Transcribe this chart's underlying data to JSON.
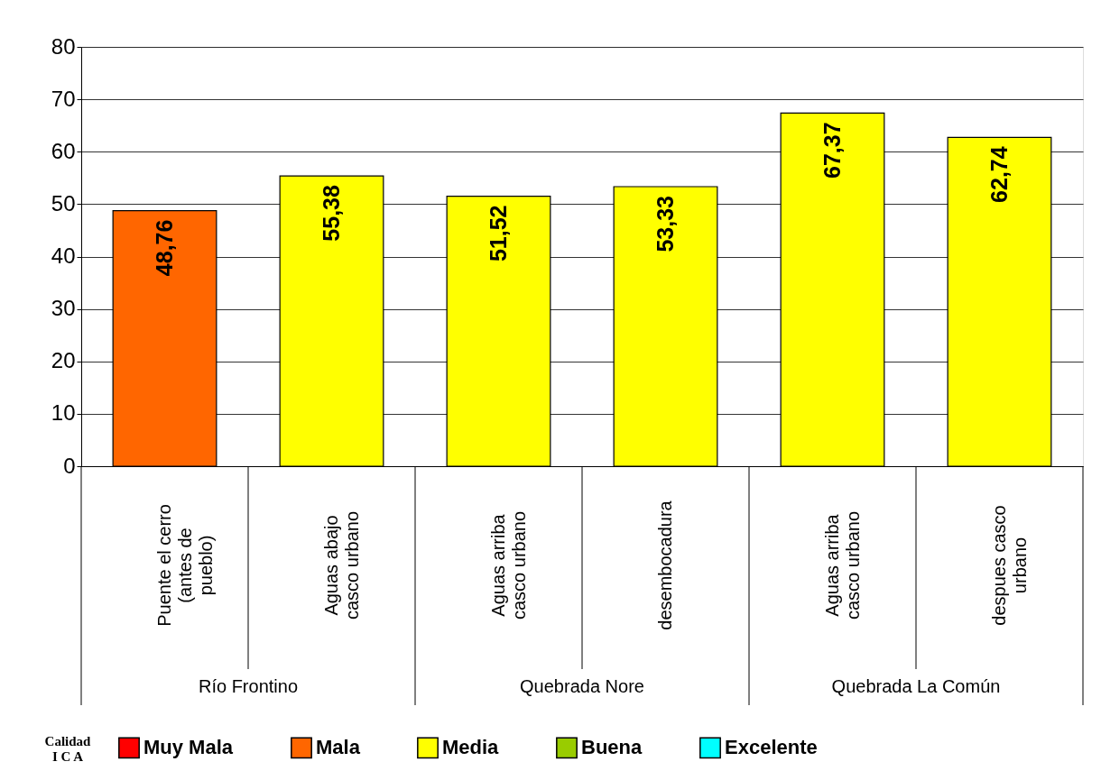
{
  "chart_data": {
    "type": "bar",
    "stacked": true,
    "categories": [
      "Puente el cerro (antes de pueblo)",
      "Aguas abajo casco urbano",
      "Aguas arriba casco urbano",
      "desembocadura",
      "Aguas arriba casco urbano",
      "despues casco urbano"
    ],
    "series": [
      {
        "name": "Muy Mala",
        "color": "#ff0000",
        "values": [
          null,
          null,
          null,
          null,
          null,
          null
        ]
      },
      {
        "name": "Mala",
        "color": "#ff6600",
        "values": [
          48.76,
          null,
          null,
          null,
          null,
          null
        ],
        "value_labels": [
          "48,76",
          null,
          null,
          null,
          null,
          null
        ]
      },
      {
        "name": "Media",
        "color": "#ffff00",
        "values": [
          null,
          55.38,
          51.52,
          53.33,
          67.37,
          62.74
        ],
        "value_labels": [
          null,
          "55,38",
          "51,52",
          "53,33",
          "67,37",
          "62,74"
        ]
      },
      {
        "name": "Buena",
        "color": "#99cc00",
        "values": [
          null,
          null,
          null,
          null,
          null,
          null
        ]
      },
      {
        "name": "Excelente",
        "color": "#00ffff",
        "values": [
          null,
          null,
          null,
          null,
          null,
          null
        ]
      }
    ],
    "legend_title": "Calidad I C A",
    "legend": "bottom",
    "annotations": [
      "Río Frontino",
      "Quebrada Nore",
      "Quebrada La Común"
    ],
    "ylim": [
      0,
      80
    ],
    "yticks": [
      0,
      10,
      20,
      30,
      40,
      50,
      60,
      70,
      80
    ],
    "grid": "y"
  }
}
